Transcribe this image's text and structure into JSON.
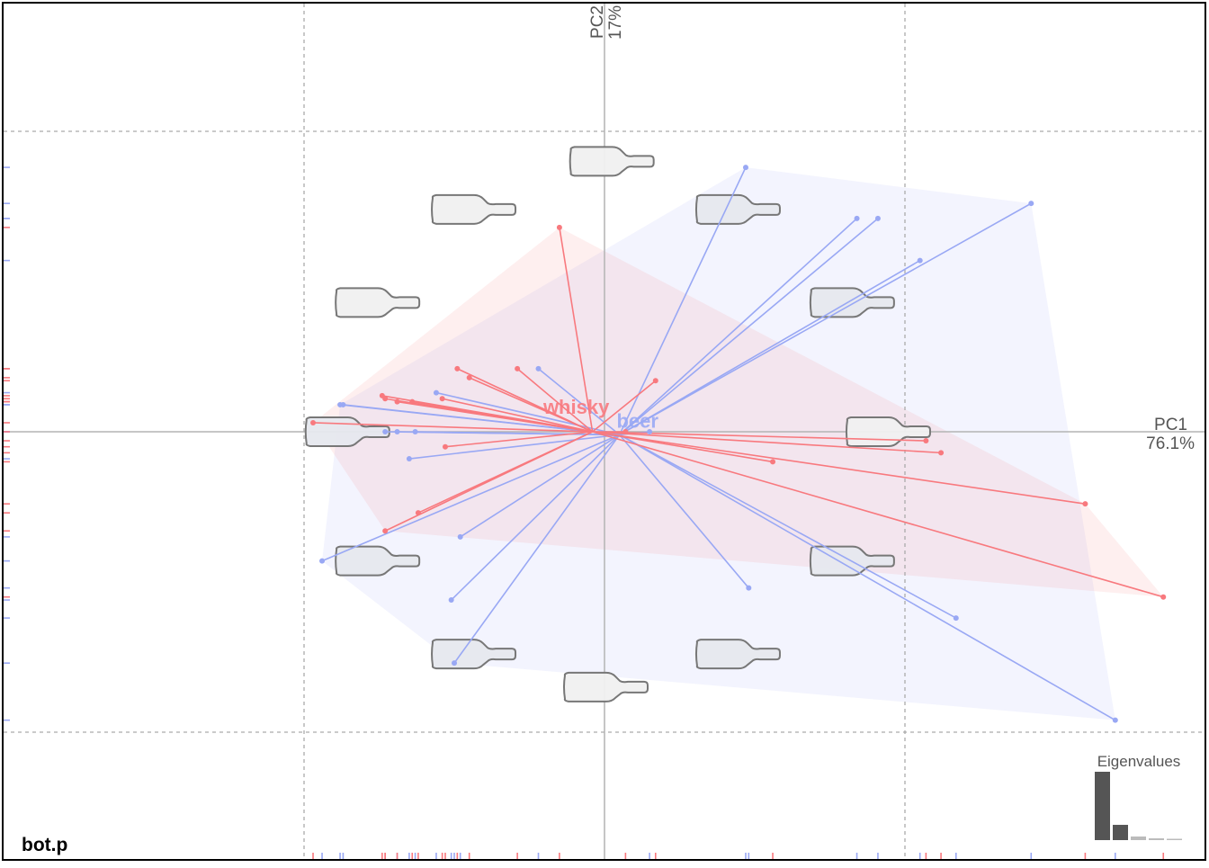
{
  "chart_data": {
    "type": "scatter",
    "subtype": "PCA biplot with group star plots, convex hulls and shape outlines",
    "panel_label": "bot.p",
    "axes": {
      "x": {
        "label": "PC1",
        "variance": "76.1%",
        "range": [
          -1.0,
          1.8
        ]
      },
      "y": {
        "label": "PC2",
        "variance": "17%",
        "range": [
          -1.0,
          1.05
        ]
      },
      "grid": "dashed at ±1"
    },
    "groups": [
      {
        "name": "whisky",
        "color": "#f8797e",
        "centroid": [
          -0.04,
          0.0
        ],
        "points": [
          [
            -0.15,
            0.68
          ],
          [
            -0.49,
            0.21
          ],
          [
            -0.29,
            0.21
          ],
          [
            -0.74,
            0.12
          ],
          [
            -0.73,
            0.11
          ],
          [
            -0.69,
            0.1
          ],
          [
            -0.64,
            0.1
          ],
          [
            -0.54,
            0.11
          ],
          [
            -0.45,
            0.18
          ],
          [
            0.17,
            0.17
          ],
          [
            -0.97,
            0.03
          ],
          [
            -0.53,
            -0.05
          ],
          [
            -0.62,
            -0.27
          ],
          [
            -0.73,
            -0.33
          ],
          [
            0.07,
            0.0
          ],
          [
            0.56,
            -0.1
          ],
          [
            1.07,
            -0.03
          ],
          [
            1.12,
            -0.07
          ],
          [
            1.6,
            -0.24
          ],
          [
            1.86,
            -0.55
          ]
        ]
      },
      {
        "name": "beer",
        "color": "#99a8f4",
        "centroid": [
          0.05,
          -0.01
        ],
        "points": [
          [
            0.47,
            0.88
          ],
          [
            0.91,
            0.71
          ],
          [
            0.84,
            0.71
          ],
          [
            1.42,
            0.76
          ],
          [
            1.05,
            0.57
          ],
          [
            -0.22,
            0.21
          ],
          [
            -0.56,
            0.13
          ],
          [
            -0.87,
            0.09
          ],
          [
            -0.88,
            0.09
          ],
          [
            -0.69,
            0.0
          ],
          [
            -0.63,
            0.0
          ],
          [
            -0.73,
            0.0
          ],
          [
            -0.65,
            -0.09
          ],
          [
            0.15,
            0.0
          ],
          [
            -0.48,
            -0.35
          ],
          [
            -0.94,
            -0.43
          ],
          [
            -0.51,
            -0.56
          ],
          [
            0.48,
            -0.52
          ],
          [
            1.17,
            -0.62
          ],
          [
            -0.5,
            -0.77
          ],
          [
            1.7,
            -0.96
          ]
        ]
      }
    ],
    "shape_outlines": [
      {
        "type": "mean-shape",
        "position": [
          -0.44,
          0.74
        ],
        "fill": "#f0f0f0"
      },
      {
        "type": "mean-shape",
        "position": [
          0.02,
          0.9
        ],
        "fill": "#f0f0f0"
      },
      {
        "type": "mean-shape",
        "position": [
          0.44,
          0.74
        ],
        "fill": "#e6e8ee"
      },
      {
        "type": "mean-shape",
        "position": [
          -0.76,
          0.43
        ],
        "fill": "#f0f0f0"
      },
      {
        "type": "mean-shape",
        "position": [
          0.82,
          0.43
        ],
        "fill": "#e6e8ee"
      },
      {
        "type": "mean-shape",
        "position": [
          -0.86,
          0.0
        ],
        "fill": "#e6e8ee"
      },
      {
        "type": "mean-shape",
        "position": [
          0.94,
          0.0
        ],
        "fill": "#f0f0f0"
      },
      {
        "type": "mean-shape",
        "position": [
          -0.76,
          -0.43
        ],
        "fill": "#e6e8ee"
      },
      {
        "type": "mean-shape",
        "position": [
          0.82,
          -0.43
        ],
        "fill": "#e6e8ee"
      },
      {
        "type": "mean-shape",
        "position": [
          -0.44,
          -0.74
        ],
        "fill": "#e6e8ee"
      },
      {
        "type": "mean-shape",
        "position": [
          0.44,
          -0.74
        ],
        "fill": "#e6e8ee"
      },
      {
        "type": "mean-shape",
        "position": [
          0.0,
          -0.85
        ],
        "fill": "#f0f0f0"
      }
    ],
    "inset": {
      "title": "Eigenvalues",
      "values": [
        0.761,
        0.17,
        0.04,
        0.02,
        0.01
      ]
    }
  }
}
